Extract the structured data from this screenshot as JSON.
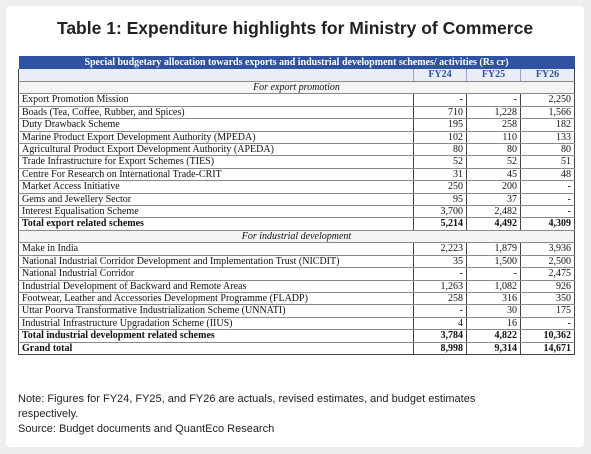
{
  "title": "Table 1: Expenditure highlights for Ministry of Commerce",
  "table": {
    "header": "Special budgetary allocation towards exports and industrial development schemes/ activities (Rs cr)",
    "years": [
      "FY24",
      "FY25",
      "FY26"
    ],
    "sections": [
      {
        "label": "For export promotion",
        "rows": [
          {
            "name": "Export Promotion Mission",
            "v": [
              "-",
              "-",
              "2,250"
            ]
          },
          {
            "name": "Boads (Tea, Coffee, Rubber, and Spices)",
            "v": [
              "710",
              "1,228",
              "1,566"
            ]
          },
          {
            "name": "Duty Drawback Scheme",
            "v": [
              "195",
              "258",
              "182"
            ]
          },
          {
            "name": "Marine Product Export Development Authority (MPEDA)",
            "v": [
              "102",
              "110",
              "133"
            ]
          },
          {
            "name": "Agricultural Product Export Development Authority (APEDA)",
            "v": [
              "80",
              "80",
              "80"
            ]
          },
          {
            "name": "Trade Infrastructure for Export Schemes (TIES)",
            "v": [
              "52",
              "52",
              "51"
            ]
          },
          {
            "name": "Centre For Research on International Trade-CRIT",
            "v": [
              "31",
              "45",
              "48"
            ]
          },
          {
            "name": "Market Access Initiative",
            "v": [
              "250",
              "200",
              "-"
            ]
          },
          {
            "name": "Gems and Jewellery Sector",
            "v": [
              "95",
              "37",
              "-"
            ]
          },
          {
            "name": "Interest Equalisation Scheme",
            "v": [
              "3,700",
              "2,482",
              "-"
            ]
          }
        ],
        "total": {
          "name": "Total export related schemes",
          "v": [
            "5,214",
            "4,492",
            "4,309"
          ]
        }
      },
      {
        "label": "For industrial development",
        "rows": [
          {
            "name": "Make in India",
            "v": [
              "2,223",
              "1,879",
              "3,936"
            ]
          },
          {
            "name": "National Industrial Corridor Development and Implementation Trust (NICDIT)",
            "v": [
              "35",
              "1,500",
              "2,500"
            ]
          },
          {
            "name": "National Industrial Corridor",
            "v": [
              "-",
              "-",
              "2,475"
            ]
          },
          {
            "name": "Industrial Development of Backward and Remote Areas",
            "v": [
              "1,263",
              "1,082",
              "926"
            ]
          },
          {
            "name": "Footwear, Leather and Accessories Development Programme (FLADP)",
            "v": [
              "258",
              "316",
              "350"
            ]
          },
          {
            "name": "Uttar Poorva Transformative Industrialization Scheme (UNNATI)",
            "v": [
              "-",
              "30",
              "175"
            ]
          },
          {
            "name": "Industrial Infrastructure Upgradation Scheme (IIUS)",
            "v": [
              "4",
              "16",
              "-"
            ]
          }
        ],
        "total": {
          "name": "Total industrial development related schemes",
          "v": [
            "3,784",
            "4,822",
            "10,362"
          ]
        }
      }
    ],
    "grand_total": {
      "name": "Grand total",
      "v": [
        "8,998",
        "9,314",
        "14,671"
      ]
    }
  },
  "notes": {
    "line1": "Note: Figures for FY24, FY25, and FY26 are actuals, revised estimates, and budget estimates",
    "line2": "respectively.",
    "line3": "Source: Budget documents and QuantEco Research"
  }
}
